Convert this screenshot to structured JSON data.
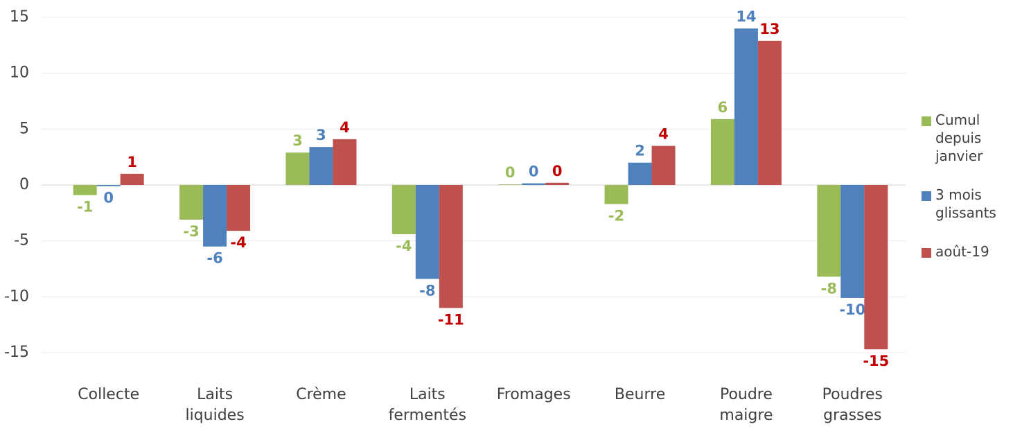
{
  "chart_data": {
    "type": "bar",
    "categories": [
      "Collecte",
      "Laits liquides",
      "Crème",
      "Laits fermentés",
      "Fromages",
      "Beurre",
      "Poudre maigre",
      "Poudres grasses"
    ],
    "series": [
      {
        "name": "Cumul depuis janvier",
        "color": "#9bbb59",
        "label_color": "#9bbb59",
        "values": [
          -0.9,
          -3.1,
          2.9,
          -4.4,
          0.05,
          -1.7,
          5.9,
          -8.2
        ],
        "value_labels": [
          "-1",
          "-3",
          "3",
          "-4",
          "0",
          "-2",
          "6",
          "-8"
        ]
      },
      {
        "name": "3 mois glissants",
        "color": "#4f81bd",
        "label_color": "#4f81bd",
        "values": [
          -0.1,
          -5.5,
          3.4,
          -8.4,
          0.15,
          2.0,
          14.0,
          -10.1
        ],
        "value_labels": [
          "0",
          "-6",
          "3",
          "-8",
          "0",
          "2",
          "14",
          "-10"
        ]
      },
      {
        "name": "août-19",
        "color": "#c0504d",
        "label_color": "#c00000",
        "values": [
          1.0,
          -4.1,
          4.1,
          -11.0,
          0.2,
          3.5,
          12.9,
          -14.7
        ],
        "value_labels": [
          "1",
          "-4",
          "4",
          "-11",
          "0",
          "4",
          "13",
          "-15"
        ]
      }
    ],
    "ylim": [
      -15,
      15
    ],
    "yticks": [
      -15,
      -10,
      -5,
      0,
      5,
      10,
      15
    ],
    "grid": true,
    "legend": "right"
  }
}
